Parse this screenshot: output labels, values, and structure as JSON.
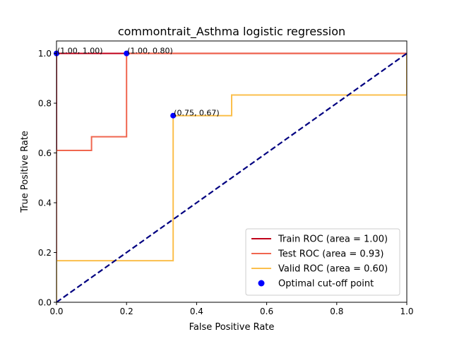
{
  "chart_data": {
    "type": "line",
    "title": "commontrait_Asthma logistic regression",
    "xlabel": "False Positive Rate",
    "ylabel": "True Positive Rate",
    "xlim": [
      0,
      1
    ],
    "ylim": [
      0,
      1.05
    ],
    "grid": false,
    "legend_position": "lower-right",
    "x_ticks": [
      "0.0",
      "0.2",
      "0.4",
      "0.6",
      "0.8",
      "1.0"
    ],
    "y_ticks": [
      "0.0",
      "0.2",
      "0.4",
      "0.6",
      "0.8",
      "1.0"
    ],
    "series": [
      {
        "name": "Train ROC (area = 1.00)",
        "color": "#c0001a",
        "x": [
          0,
          0,
          1
        ],
        "y": [
          0,
          1,
          1
        ]
      },
      {
        "name": "Test ROC (area = 0.93)",
        "color": "#f0664f",
        "x": [
          0,
          0,
          0.1,
          0.1,
          0.2,
          0.2,
          1
        ],
        "y": [
          0,
          0.61,
          0.61,
          0.665,
          0.665,
          1,
          1
        ]
      },
      {
        "name": "Valid ROC (area = 0.60)",
        "color": "#fbbf4c",
        "x": [
          0,
          0,
          0.333,
          0.333,
          0.5,
          0.5,
          1,
          1
        ],
        "y": [
          0,
          0.167,
          0.167,
          0.75,
          0.75,
          0.833,
          0.833,
          1
        ]
      }
    ],
    "diagonal": {
      "color": "#000080",
      "x": [
        0,
        1
      ],
      "y": [
        0,
        1
      ]
    },
    "optimal_points": {
      "name": "Optimal cut-off point",
      "color": "#0000ff",
      "points": [
        {
          "x": 0,
          "y": 1,
          "label": "(1.00, 1.00)"
        },
        {
          "x": 0.2,
          "y": 1,
          "label": "(1.00, 0.80)"
        },
        {
          "x": 0.333,
          "y": 0.75,
          "label": "(0.75, 0.67)"
        }
      ]
    }
  }
}
